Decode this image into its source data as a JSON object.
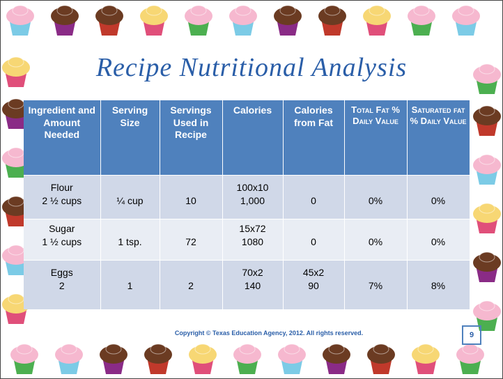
{
  "title": "Recipe Nutritional Analysis",
  "table": {
    "header": [
      "Ingredient and Amount Needed",
      "Serving Size",
      "Servings Used in Recipe",
      "Calories",
      "Calories from Fat",
      "Total Fat % Daily Value",
      "Saturated fat % Daily Value"
    ],
    "rows": [
      [
        [
          "Flour",
          "2 ½ cups"
        ],
        [
          "¼ cup"
        ],
        [
          "10"
        ],
        [
          "100x10",
          "1,000"
        ],
        [
          "0"
        ],
        [
          "0%"
        ],
        [
          "0%"
        ]
      ],
      [
        [
          "Sugar",
          "1 ½ cups"
        ],
        [
          "1 tsp."
        ],
        [
          "72"
        ],
        [
          "15x72",
          "1080"
        ],
        [
          "0"
        ],
        [
          "0%"
        ],
        [
          "0%"
        ]
      ],
      [
        [
          "Eggs",
          "2"
        ],
        [
          "1"
        ],
        [
          "2"
        ],
        [
          "70x2",
          "140"
        ],
        [
          "45x2",
          "90"
        ],
        [
          "7%"
        ],
        [
          "8%"
        ]
      ]
    ]
  },
  "footer": {
    "copyright": "Copyright © Texas Education Agency, 2012. All rights reserved.",
    "page_number": "9"
  }
}
